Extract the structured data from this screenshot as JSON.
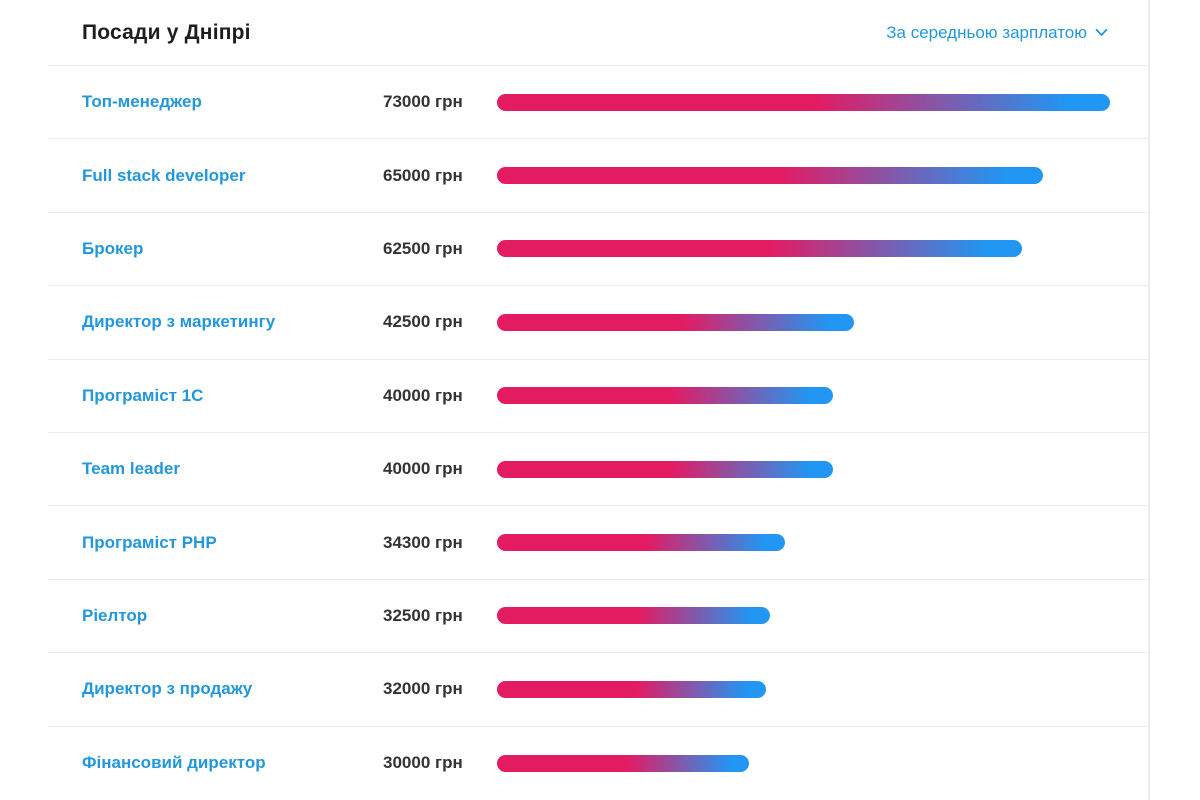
{
  "header": {
    "title": "Посади у Дніпрі",
    "sort": {
      "label": "За середньою зарплатою",
      "icon": "chevron-down-icon"
    }
  },
  "chart_data": {
    "type": "bar",
    "orientation": "horizontal",
    "title": "Посади у Дніпрі",
    "unit": "грн",
    "xlim": [
      0,
      73000
    ],
    "max_value": 73000,
    "categories": [
      "Топ-менеджер",
      "Full stack developer",
      "Брокер",
      "Директор з маркетингу",
      "Програміст 1С",
      "Team leader",
      "Програміст PHP",
      "Ріелтор",
      "Директор з продажу",
      "Фінансовий директор"
    ],
    "values": [
      73000,
      65000,
      62500,
      42500,
      40000,
      40000,
      34300,
      32500,
      32000,
      30000
    ],
    "value_labels": [
      "73000 грн",
      "65000 грн",
      "62500 грн",
      "42500 грн",
      "40000 грн",
      "40000 грн",
      "34300 грн",
      "32500 грн",
      "32000 грн",
      "30000 грн"
    ],
    "bar_gradient": {
      "from": "#e31b63",
      "to": "#2196f3"
    },
    "legend": null,
    "grid": false
  },
  "colors": {
    "link_blue": "#2397db",
    "title_text": "#1d1d1d",
    "value_text": "#333333",
    "divider": "#ececec",
    "bar_pink": "#e31b63",
    "bar_blue": "#2196f3",
    "background": "#ffffff"
  }
}
